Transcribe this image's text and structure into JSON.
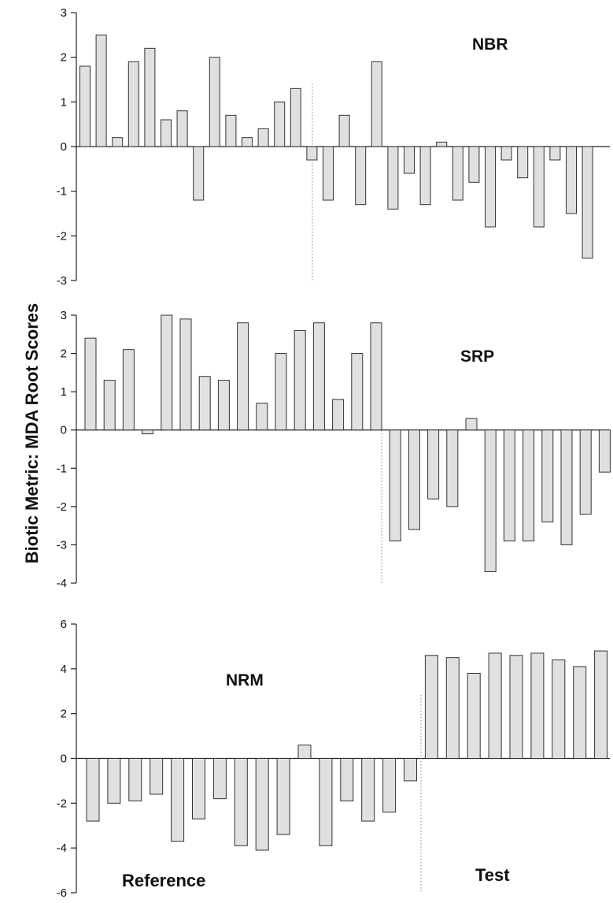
{
  "chart_data": {
    "type": "bar",
    "ylabel": "Biotic Metric: MDA Root Scores",
    "groups": [
      "Reference",
      "Test"
    ],
    "bar_color": "#e0e0e0",
    "bar_stroke": "#333333",
    "panels": [
      {
        "title": "NBR",
        "ylim": [
          -3,
          3
        ],
        "yticks": [
          -3,
          -2,
          -1,
          0,
          1,
          2,
          3
        ],
        "reference": [
          1.8,
          2.5,
          0.2,
          1.9,
          2.2,
          0.6,
          0.8,
          -1.2,
          2.0,
          0.7,
          0.2,
          0.4,
          1.0,
          1.3
        ],
        "test": [
          -0.3,
          -1.2,
          0.7,
          -1.3,
          1.9,
          -1.4,
          -0.6,
          -1.3,
          0.1,
          -1.2,
          -0.8,
          -1.8,
          -0.3,
          -0.7,
          -1.8,
          -0.3,
          -1.5,
          -2.5
        ]
      },
      {
        "title": "SRP",
        "ylim": [
          -4,
          3
        ],
        "yticks": [
          -4,
          -3,
          -2,
          -1,
          0,
          1,
          2,
          3
        ],
        "reference": [
          2.4,
          1.3,
          2.1,
          -0.1,
          3.0,
          2.9,
          1.4,
          1.3,
          2.8,
          0.7,
          2.0,
          2.6,
          2.8,
          0.8,
          2.0,
          2.8
        ],
        "test": [
          -2.9,
          -2.6,
          -1.8,
          -2.0,
          0.3,
          -3.7,
          -2.9,
          -2.9,
          -2.4,
          -3.0,
          -2.2,
          -1.1
        ]
      },
      {
        "title": "NRM",
        "ylim": [
          -6,
          6
        ],
        "yticks": [
          -6,
          -4,
          -2,
          0,
          2,
          4,
          6
        ],
        "reference": [
          -2.8,
          -2.0,
          -1.9,
          -1.6,
          -3.7,
          -2.7,
          -1.8,
          -3.9,
          -4.1,
          -3.4,
          0.6,
          -3.9,
          -1.9,
          -2.8,
          -2.4,
          -1.0
        ],
        "test": [
          4.6,
          4.5,
          3.8,
          4.7,
          4.6,
          4.7,
          4.4,
          4.1,
          4.8
        ]
      }
    ]
  }
}
